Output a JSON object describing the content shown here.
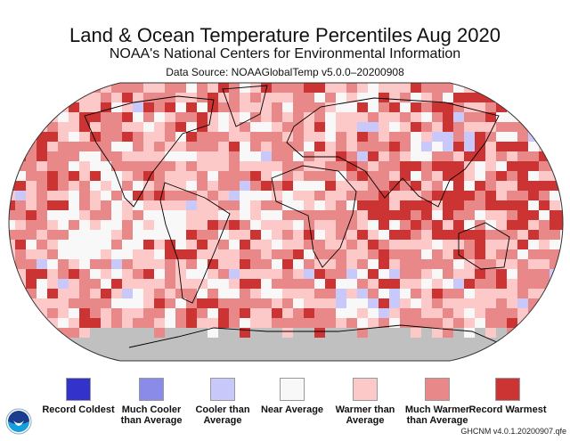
{
  "title": "Land & Ocean Temperature Percentiles Aug 2020",
  "subtitle": "NOAA's National Centers for Environmental Information",
  "source": "Data Source: NOAAGlobalTemp v5.0.0–20200908",
  "legend": [
    {
      "label": "Record Coldest",
      "color": "#3333cc"
    },
    {
      "label": "Much Cooler than Average",
      "color": "#8a8ae8"
    },
    {
      "label": "Cooler than Average",
      "color": "#c8c8fa"
    },
    {
      "label": "Near Average",
      "color": "#f8f8f8"
    },
    {
      "label": "Warmer than Average",
      "color": "#fcc8c8"
    },
    {
      "label": "Much Warmer than Average",
      "color": "#e88888"
    },
    {
      "label": "Record Warmest",
      "color": "#cc3333"
    }
  ],
  "no_data_color": "#c0c0c0",
  "logo": {
    "text": "NOAA",
    "icon": "noaa-logo-icon"
  },
  "credit": "GHCNM v4.0.1.20200907.qfe"
}
